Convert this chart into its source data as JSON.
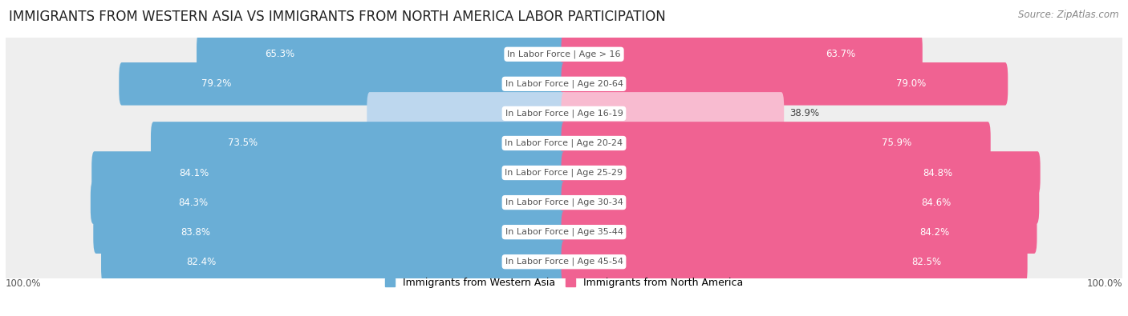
{
  "title": "IMMIGRANTS FROM WESTERN ASIA VS IMMIGRANTS FROM NORTH AMERICA LABOR PARTICIPATION",
  "source": "Source: ZipAtlas.com",
  "categories": [
    "In Labor Force | Age > 16",
    "In Labor Force | Age 20-64",
    "In Labor Force | Age 16-19",
    "In Labor Force | Age 20-24",
    "In Labor Force | Age 25-29",
    "In Labor Force | Age 30-34",
    "In Labor Force | Age 35-44",
    "In Labor Force | Age 45-54"
  ],
  "western_asia_values": [
    65.3,
    79.2,
    34.8,
    73.5,
    84.1,
    84.3,
    83.8,
    82.4
  ],
  "north_america_values": [
    63.7,
    79.0,
    38.9,
    75.9,
    84.8,
    84.6,
    84.2,
    82.5
  ],
  "western_asia_color_strong": "#6aaed6",
  "western_asia_color_light": "#bdd7ee",
  "north_america_color_strong": "#f06292",
  "north_america_color_light": "#f8bbd0",
  "row_bg_color": "#eeeeee",
  "x_max": 100.0,
  "legend_label_west": "Immigrants from Western Asia",
  "legend_label_north": "Immigrants from North America",
  "title_fontsize": 12,
  "source_fontsize": 8.5,
  "bar_label_fontsize": 8.5,
  "cat_label_fontsize": 8,
  "axis_label_fontsize": 8.5,
  "threshold_for_light": 50
}
